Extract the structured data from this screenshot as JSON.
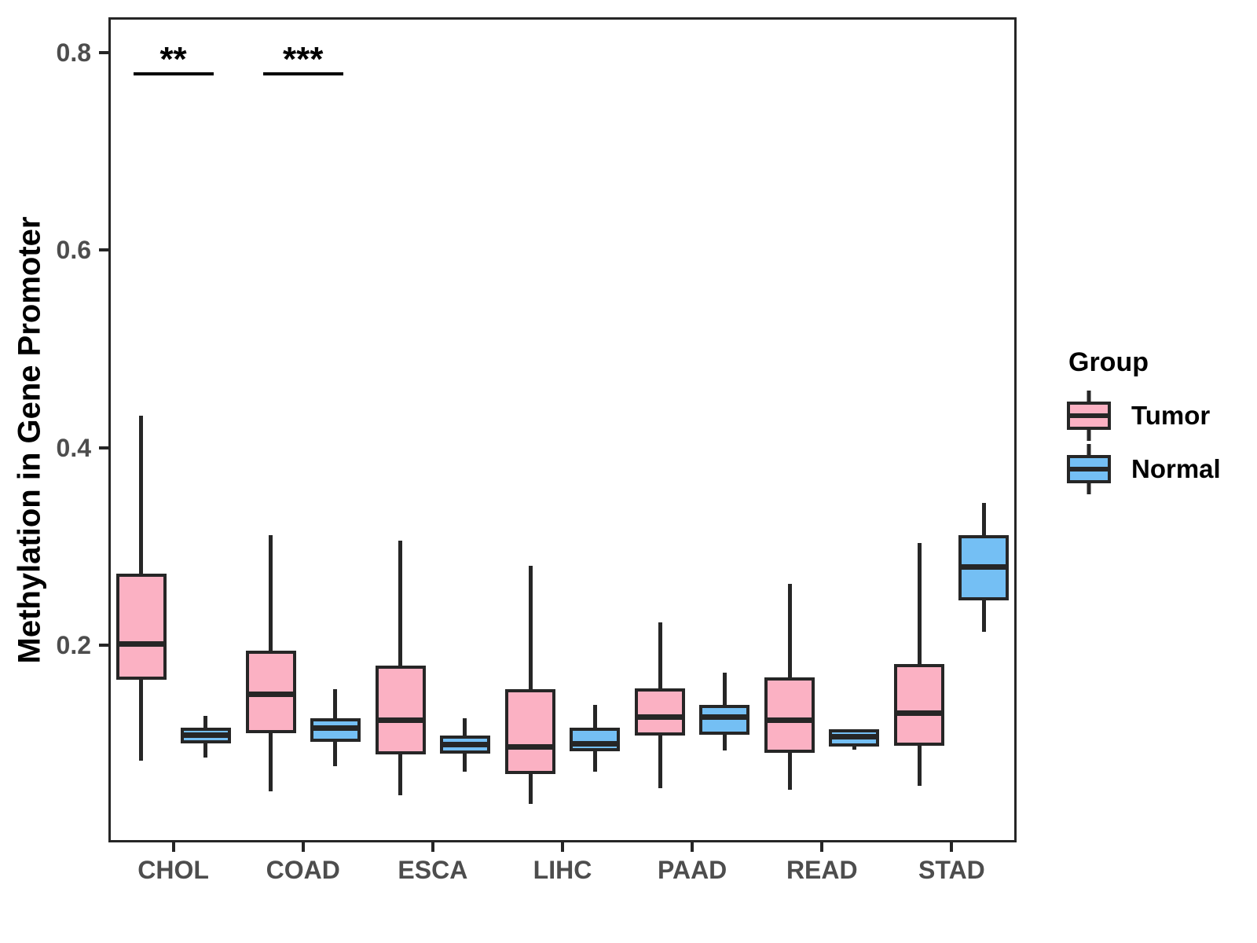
{
  "chart_data": {
    "type": "boxplot",
    "title": "",
    "xlabel": "",
    "ylabel": "Methylation in Gene Promoter",
    "categories": [
      "CHOL",
      "COAD",
      "ESCA",
      "LIHC",
      "PAAD",
      "READ",
      "STAD"
    ],
    "ylim": [
      0,
      0.836
    ],
    "yticks": [
      0.2,
      0.4,
      0.6,
      0.8
    ],
    "ytick_labels": [
      "0.2",
      "0.4",
      "0.6",
      "0.8"
    ],
    "grid": false,
    "legend": {
      "title": "Group",
      "position": "right",
      "items": [
        {
          "name": "Tumor",
          "fill": "#FBB1C3"
        },
        {
          "name": "Normal",
          "fill": "#74BFF4"
        }
      ]
    },
    "series": [
      {
        "name": "Tumor",
        "fill": "#FBB1C3",
        "boxes": [
          {
            "category": "CHOL",
            "low": 0.083,
            "q1": 0.165,
            "median": 0.201,
            "q3": 0.272,
            "high": 0.432
          },
          {
            "category": "COAD",
            "low": 0.052,
            "q1": 0.111,
            "median": 0.15,
            "q3": 0.194,
            "high": 0.311
          },
          {
            "category": "ESCA",
            "low": 0.048,
            "q1": 0.089,
            "median": 0.124,
            "q3": 0.179,
            "high": 0.306
          },
          {
            "category": "LIHC",
            "low": 0.039,
            "q1": 0.069,
            "median": 0.097,
            "q3": 0.155,
            "high": 0.28
          },
          {
            "category": "PAAD",
            "low": 0.055,
            "q1": 0.108,
            "median": 0.127,
            "q3": 0.156,
            "high": 0.223
          },
          {
            "category": "READ",
            "low": 0.053,
            "q1": 0.091,
            "median": 0.124,
            "q3": 0.167,
            "high": 0.262
          },
          {
            "category": "STAD",
            "low": 0.057,
            "q1": 0.098,
            "median": 0.131,
            "q3": 0.181,
            "high": 0.303
          }
        ]
      },
      {
        "name": "Normal",
        "fill": "#74BFF4",
        "boxes": [
          {
            "category": "CHOL",
            "low": 0.086,
            "q1": 0.1,
            "median": 0.109,
            "q3": 0.116,
            "high": 0.128
          },
          {
            "category": "COAD",
            "low": 0.077,
            "q1": 0.102,
            "median": 0.116,
            "q3": 0.126,
            "high": 0.155
          },
          {
            "category": "ESCA",
            "low": 0.072,
            "q1": 0.09,
            "median": 0.099,
            "q3": 0.108,
            "high": 0.126
          },
          {
            "category": "LIHC",
            "low": 0.072,
            "q1": 0.092,
            "median": 0.1,
            "q3": 0.116,
            "high": 0.139
          },
          {
            "category": "PAAD",
            "low": 0.093,
            "q1": 0.109,
            "median": 0.127,
            "q3": 0.139,
            "high": 0.172
          },
          {
            "category": "READ",
            "low": 0.094,
            "q1": 0.097,
            "median": 0.107,
            "q3": 0.115,
            "high": 0.115
          },
          {
            "category": "STAD",
            "low": 0.213,
            "q1": 0.245,
            "median": 0.279,
            "q3": 0.311,
            "high": 0.344
          }
        ]
      }
    ],
    "significance": [
      {
        "category": "CHOL",
        "label": "**"
      },
      {
        "category": "COAD",
        "label": "***"
      }
    ],
    "colors": {
      "line": "#262626",
      "tick_text": "#4d4d4d",
      "title_text": "#000000"
    }
  }
}
